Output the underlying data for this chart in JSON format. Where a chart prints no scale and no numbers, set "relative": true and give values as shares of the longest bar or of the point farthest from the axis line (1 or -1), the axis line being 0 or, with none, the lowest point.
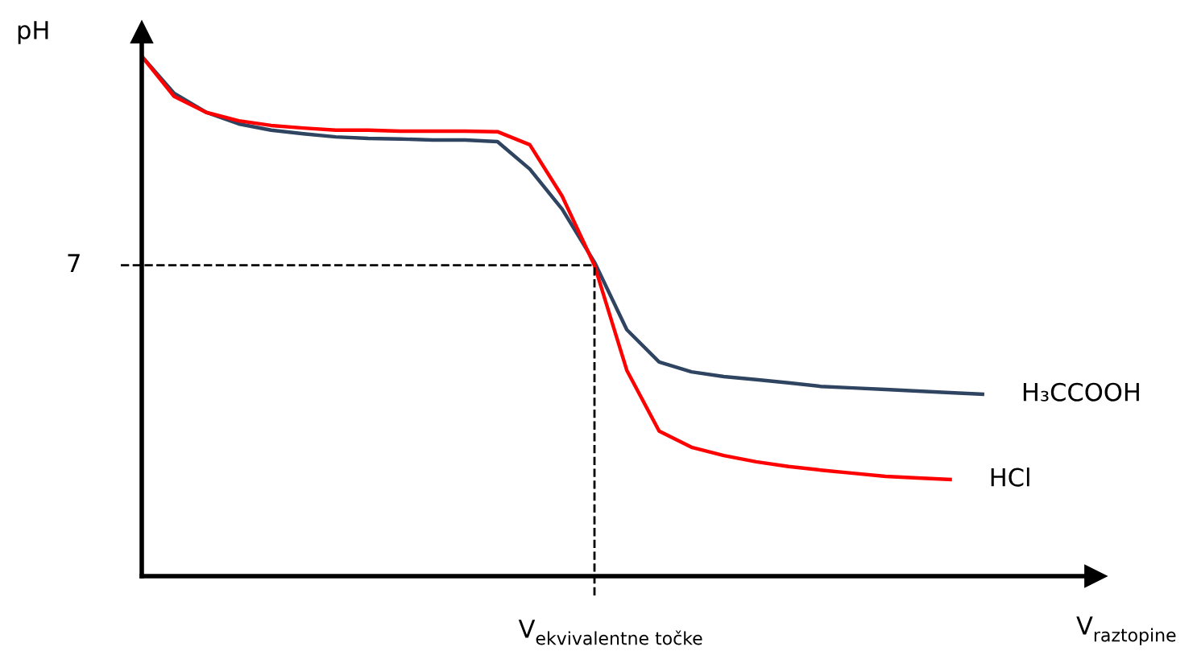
{
  "chart_data": {
    "type": "line",
    "relative": true,
    "ylabel": "pH",
    "xlabel": "V$_{raztopine}$",
    "categories": [
      null,
      null,
      null,
      null,
      null,
      null,
      null,
      null,
      null,
      null,
      null,
      null,
      null,
      null,
      null,
      null,
      null,
      null,
      null,
      null,
      null,
      null,
      null,
      null,
      null,
      null,
      null
    ],
    "series": [
      {
        "name": "H₃CCOOH",
        "color": "#2e4460",
        "values": [
          1.0,
          0.929,
          0.892,
          0.87,
          0.858,
          0.851,
          0.845,
          0.842,
          0.841,
          0.839,
          0.839,
          0.836,
          0.783,
          0.706,
          0.604,
          0.474,
          0.412,
          0.393,
          0.384,
          0.378,
          0.372,
          0.365,
          0.362,
          0.359,
          0.356,
          0.353,
          0.35
        ]
      },
      {
        "name": "HCl",
        "color": "#ff0000",
        "values": [
          1.0,
          0.923,
          0.892,
          0.876,
          0.867,
          0.862,
          0.858,
          0.858,
          0.856,
          0.856,
          0.856,
          0.855,
          0.83,
          0.731,
          0.598,
          0.396,
          0.279,
          0.248,
          0.232,
          0.22,
          0.211,
          0.204,
          0.198,
          0.192,
          0.189,
          0.186,
          null
        ]
      }
    ],
    "ref_lines": [
      {
        "axis": "y",
        "value": 0.598,
        "color": "#000000",
        "line_style": "dashed"
      }
    ],
    "annotations": [
      "7",
      "V$_{ekvivalentne točke}$"
    ],
    "legend": false,
    "marker": "none",
    "line_style": "solid"
  }
}
